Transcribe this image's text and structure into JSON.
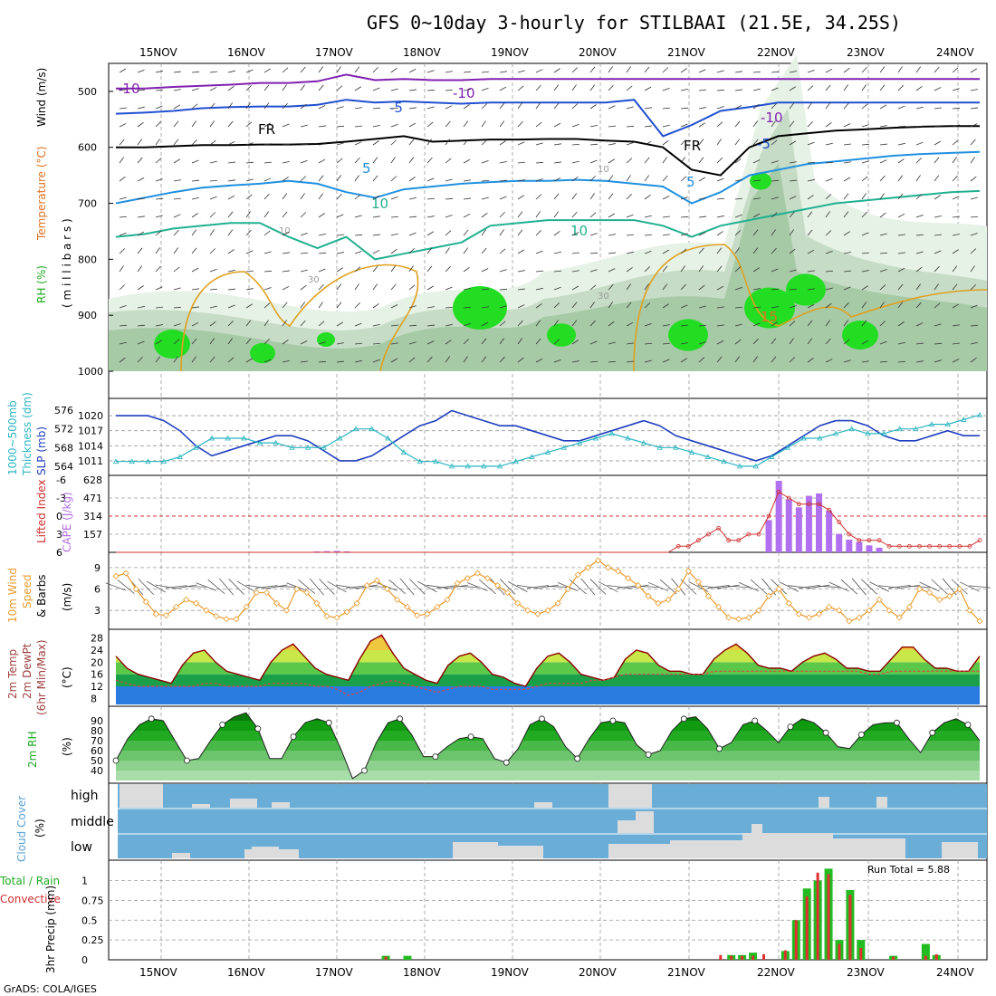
{
  "title": "GFS 0~10day 3-hourly for STILBAAI (21.5E, 34.25S)",
  "footer": "GrADS: COLA/IGES",
  "run_total_label": "Run Total = 5.88",
  "dates": [
    "15NOV",
    "16NOV",
    "17NOV",
    "18NOV",
    "19NOV",
    "20NOV",
    "21NOV",
    "22NOV",
    "23NOV",
    "24NOV"
  ],
  "axis_labels": {
    "p1_a": "RH (%)",
    "p1_b": "Temperature (°C)",
    "p1_c": "Wind (m/s)",
    "p1_d": "( m i l l i b a r s )",
    "p2_a": "1000~500mb",
    "p2_b": "Thickness (dm)",
    "p2_c": "SLP (mb)",
    "p3_a": "Lifted Index",
    "p3_b": "CAPE (J/kg)",
    "p4_a": "10m Wind",
    "p4_b": "Speed",
    "p4_c": "& Barbs",
    "p4_d": "(m/s)",
    "p5_a": "2m Temp",
    "p5_b": "2m DewPt",
    "p5_c": "(6hr Min/Max)",
    "p5_d": "(°C)",
    "p6_a": "2m RH",
    "p6_b": "(%)",
    "p7_a": "Cloud Cover",
    "p7_b": "(%)",
    "p8_a": "Total / Rain",
    "p8_b": "Convective",
    "p8_c": "3hr Precip (mm)"
  },
  "chart_data": [
    {
      "type": "line",
      "name": "pressure-cross-section",
      "y_ticks": [
        "500",
        "600",
        "700",
        "800",
        "900",
        "1000"
      ],
      "y_range": [
        450,
        1000
      ],
      "contour_labels": [
        "-10",
        "-10",
        "-10",
        "-5",
        "-5",
        "FR",
        "FR",
        "5",
        "5",
        "10",
        "10",
        "15",
        "10",
        "30",
        "30",
        "10"
      ],
      "isotherms": [
        {
          "label": "-10",
          "values": [
            495,
            495,
            492,
            490,
            488,
            485,
            485,
            482,
            470,
            480,
            478,
            480,
            480,
            478,
            478,
            478,
            478,
            478,
            478,
            478,
            478,
            478,
            478,
            478,
            478,
            478,
            478,
            478,
            478,
            478,
            478
          ]
        },
        {
          "label": "-5",
          "values": [
            540,
            538,
            535,
            530,
            528,
            527,
            527,
            524,
            515,
            520,
            518,
            520,
            522,
            520,
            520,
            520,
            520,
            520,
            515,
            580,
            560,
            535,
            528,
            520,
            520,
            520,
            520,
            520,
            520,
            520,
            520
          ]
        },
        {
          "label": "FR",
          "values": [
            600,
            600,
            598,
            596,
            596,
            595,
            595,
            594,
            590,
            585,
            580,
            590,
            588,
            586,
            586,
            585,
            585,
            588,
            590,
            600,
            640,
            650,
            600,
            580,
            575,
            570,
            568,
            565,
            563,
            562,
            562
          ]
        },
        {
          "label": "5",
          "values": [
            700,
            690,
            680,
            672,
            668,
            665,
            660,
            665,
            680,
            690,
            675,
            670,
            665,
            662,
            660,
            660,
            658,
            660,
            665,
            670,
            700,
            680,
            650,
            640,
            630,
            625,
            620,
            615,
            612,
            610,
            608
          ]
        },
        {
          "label": "10",
          "values": [
            760,
            755,
            745,
            740,
            735,
            735,
            760,
            780,
            760,
            800,
            790,
            780,
            770,
            740,
            735,
            730,
            730,
            730,
            730,
            740,
            760,
            740,
            730,
            720,
            710,
            700,
            695,
            690,
            685,
            680,
            678
          ]
        }
      ]
    },
    {
      "type": "line",
      "name": "slp-thickness",
      "x": "3-hourly steps (Nov 14 ~12Z to Nov 24 ~06Z)",
      "y_ticks_slp": [
        "1011",
        "1014",
        "1017",
        "1020"
      ],
      "y_ticks_thk": [
        "564",
        "568",
        "572",
        "576"
      ],
      "series": [
        {
          "name": "SLP",
          "color": "#1f3fbf",
          "values": [
            1020,
            1020,
            1020,
            1019,
            1017,
            1014,
            1012,
            1013,
            1014,
            1015,
            1016,
            1016,
            1015,
            1013,
            1011,
            1011,
            1012,
            1014,
            1016,
            1018,
            1019,
            1021,
            1020,
            1019,
            1018,
            1018,
            1017,
            1016,
            1015,
            1015,
            1016,
            1017,
            1018,
            1019,
            1018,
            1016,
            1015,
            1014,
            1013,
            1012,
            1011,
            1012,
            1014,
            1016,
            1018,
            1019,
            1019,
            1018,
            1016,
            1015,
            1015,
            1016,
            1017,
            1016,
            1016
          ]
        },
        {
          "name": "Thickness",
          "color": "#2ab5c0",
          "values": [
            565,
            565,
            565,
            565,
            566,
            568,
            570,
            570,
            570,
            569,
            569,
            568,
            568,
            568,
            570,
            572,
            572,
            570,
            567,
            565,
            565,
            564,
            564,
            564,
            564,
            565,
            566,
            567,
            568,
            569,
            570,
            571,
            570,
            569,
            568,
            568,
            567,
            566,
            565,
            564,
            564,
            566,
            568,
            570,
            570,
            571,
            572,
            571,
            571,
            572,
            572,
            573,
            573,
            574,
            575
          ]
        }
      ]
    },
    {
      "type": "bar",
      "name": "cape-lifted-index",
      "y_ticks_cape": [
        "157",
        "314",
        "471",
        "628"
      ],
      "y_ticks_li": [
        "6",
        "3",
        "0",
        "-3",
        "-6"
      ],
      "cape_values": [
        0,
        0,
        0,
        0,
        0,
        0,
        0,
        0,
        0,
        0,
        0,
        0,
        0,
        0,
        0,
        0,
        0,
        0,
        0,
        0,
        8,
        10,
        12,
        8,
        0,
        0,
        0,
        0,
        0,
        0,
        0,
        0,
        0,
        0,
        0,
        0,
        0,
        0,
        0,
        0,
        0,
        0,
        0,
        0,
        0,
        0,
        0,
        0,
        0,
        0,
        0,
        0,
        0,
        0,
        0,
        0,
        0,
        0,
        0,
        0,
        0,
        0,
        0,
        0,
        0,
        280,
        620,
        460,
        390,
        490,
        510,
        360,
        160,
        110,
        90,
        60,
        40,
        0,
        0,
        0,
        0,
        0,
        0,
        0,
        0,
        0,
        0
      ],
      "li_values": [
        6,
        6,
        6,
        6,
        6,
        6,
        6,
        6,
        6,
        6,
        6,
        6,
        6,
        6,
        6,
        6,
        6,
        6,
        6,
        6,
        6,
        6,
        6,
        6,
        6,
        6,
        6,
        6,
        6,
        6,
        6,
        6,
        6,
        6,
        6,
        6,
        6,
        6,
        6,
        6,
        6,
        6,
        6,
        6,
        6,
        6,
        6,
        6,
        6,
        6,
        6,
        6,
        6,
        6,
        6,
        6,
        5,
        5,
        4,
        3,
        2,
        4,
        4,
        3,
        3,
        0,
        -4,
        -3,
        -2,
        -2,
        -2,
        -1,
        1,
        3,
        4,
        4,
        4,
        5,
        5,
        5,
        5,
        5,
        5,
        5,
        5,
        5,
        4
      ]
    },
    {
      "type": "line",
      "name": "wind-speed-10m",
      "y_ticks": [
        "3",
        "6",
        "9"
      ],
      "series": [
        {
          "name": "Speed",
          "color": "#e89a2c",
          "values": [
            7.8,
            8.2,
            6.0,
            4.2,
            2.5,
            2.3,
            3.5,
            4.5,
            4.0,
            3.0,
            2.2,
            1.8,
            1.8,
            3.5,
            5.5,
            5.5,
            4.0,
            3.0,
            6.0,
            5.5,
            4.0,
            2.2,
            2.0,
            2.8,
            4.0,
            6.5,
            7.2,
            6.0,
            4.5,
            3.5,
            2.3,
            2.5,
            3.5,
            4.5,
            6.8,
            7.5,
            8.2,
            7.5,
            6.5,
            5.5,
            4.0,
            3.0,
            2.5,
            3.0,
            4.0,
            6.0,
            8.0,
            9.0,
            10.0,
            9.0,
            8.5,
            7.5,
            6.5,
            5.0,
            4.0,
            4.5,
            6.0,
            8.5,
            7.0,
            5.0,
            3.5,
            2.0,
            1.8,
            2.0,
            3.0,
            5.0,
            6.0,
            4.0,
            2.5,
            2.0,
            2.5,
            3.5,
            3.0,
            1.5,
            2.0,
            3.0,
            4.5,
            3.0,
            2.0,
            3.5,
            6.0,
            5.5,
            4.5,
            5.0,
            6.0,
            3.0,
            1.5
          ]
        }
      ]
    },
    {
      "type": "area",
      "name": "temperature-2m",
      "y_ticks": [
        "8",
        "12",
        "16",
        "20",
        "24",
        "28"
      ],
      "series": [
        {
          "name": "Temp",
          "color": "#8b0000",
          "values": [
            22,
            18,
            16,
            15,
            14,
            13,
            19,
            23,
            24,
            20,
            17,
            16,
            15,
            14,
            20,
            24,
            26,
            22,
            18,
            16,
            15,
            14,
            21,
            27,
            29,
            23,
            18,
            16,
            14,
            13,
            19,
            22,
            23,
            20,
            16,
            15,
            13,
            12,
            18,
            22,
            23,
            20,
            16,
            15,
            14,
            15,
            21,
            24,
            23,
            19,
            17,
            17,
            16,
            16,
            21,
            24,
            26,
            23,
            19,
            18,
            18,
            17,
            20,
            22,
            23,
            21,
            18,
            18,
            17,
            17,
            21,
            25,
            25,
            21,
            18,
            18,
            17,
            17,
            22
          ]
        },
        {
          "name": "DewPt",
          "color": "#d44",
          "values": [
            14,
            13,
            12,
            12,
            12,
            12,
            12,
            12,
            13,
            13,
            12,
            12,
            12,
            12,
            13,
            13,
            13,
            13,
            12,
            12,
            11,
            9,
            10,
            12,
            13,
            14,
            13,
            12,
            11,
            10,
            11,
            12,
            12,
            12,
            11,
            11,
            11,
            11,
            12,
            13,
            13,
            13,
            13,
            14,
            14,
            15,
            16,
            16,
            16,
            16,
            16,
            16,
            16,
            16,
            17,
            17,
            17,
            17,
            17,
            17,
            17,
            17,
            17,
            17,
            17,
            17,
            17,
            17,
            16,
            16,
            17,
            17,
            17,
            17,
            17,
            17,
            17,
            17,
            17
          ]
        }
      ]
    },
    {
      "type": "area",
      "name": "rh-2m",
      "y_ticks": [
        "40",
        "50",
        "60",
        "70",
        "80",
        "90"
      ],
      "values": [
        50,
        72,
        86,
        92,
        90,
        70,
        50,
        52,
        70,
        86,
        94,
        98,
        82,
        52,
        52,
        74,
        88,
        92,
        88,
        62,
        32,
        40,
        68,
        88,
        92,
        76,
        54,
        54,
        64,
        72,
        74,
        72,
        52,
        48,
        62,
        86,
        92,
        84,
        64,
        52,
        72,
        88,
        90,
        88,
        66,
        56,
        60,
        80,
        92,
        94,
        82,
        62,
        68,
        86,
        90,
        80,
        68,
        84,
        92,
        88,
        78,
        64,
        62,
        76,
        86,
        88,
        88,
        72,
        58,
        78,
        88,
        92,
        86,
        70
      ]
    },
    {
      "type": "bar",
      "name": "cloud-cover",
      "y_ticks": [
        "high",
        "middle",
        "low"
      ]
    },
    {
      "type": "bar",
      "name": "precip-3hr",
      "y_ticks": [
        "0",
        "0.25",
        "0.5",
        "0.75",
        "1"
      ],
      "total_values": [
        0,
        0,
        0,
        0,
        0,
        0,
        0,
        0,
        0,
        0,
        0,
        0,
        0,
        0,
        0,
        0,
        0,
        0,
        0,
        0,
        0,
        0,
        0,
        0,
        0,
        0.05,
        0,
        0.05,
        0,
        0,
        0,
        0,
        0,
        0,
        0,
        0,
        0,
        0,
        0,
        0,
        0,
        0,
        0,
        0,
        0,
        0,
        0,
        0,
        0,
        0,
        0,
        0,
        0,
        0,
        0,
        0,
        0,
        0.06,
        0.06,
        0.09,
        0,
        0,
        0.11,
        0.5,
        0.9,
        1.0,
        1.15,
        0.25,
        0.88,
        0.25,
        0,
        0,
        0.05,
        0,
        0,
        0.2,
        0.06,
        0,
        0,
        0,
        0
      ],
      "conv_values": [
        0,
        0,
        0,
        0,
        0,
        0,
        0,
        0,
        0,
        0,
        0,
        0,
        0,
        0,
        0,
        0,
        0,
        0,
        0,
        0,
        0,
        0,
        0,
        0,
        0,
        0.04,
        0,
        0,
        0,
        0,
        0,
        0,
        0,
        0,
        0,
        0,
        0,
        0,
        0,
        0,
        0,
        0,
        0,
        0,
        0,
        0,
        0,
        0,
        0,
        0,
        0,
        0,
        0,
        0,
        0,
        0,
        0.06,
        0.05,
        0.05,
        0.05,
        0.07,
        0,
        0.12,
        0.5,
        0.8,
        1.1,
        1.08,
        0.2,
        0.82,
        0.15,
        0,
        0,
        0.04,
        0,
        0,
        0.05,
        0.07,
        0,
        0,
        0,
        0
      ]
    }
  ]
}
